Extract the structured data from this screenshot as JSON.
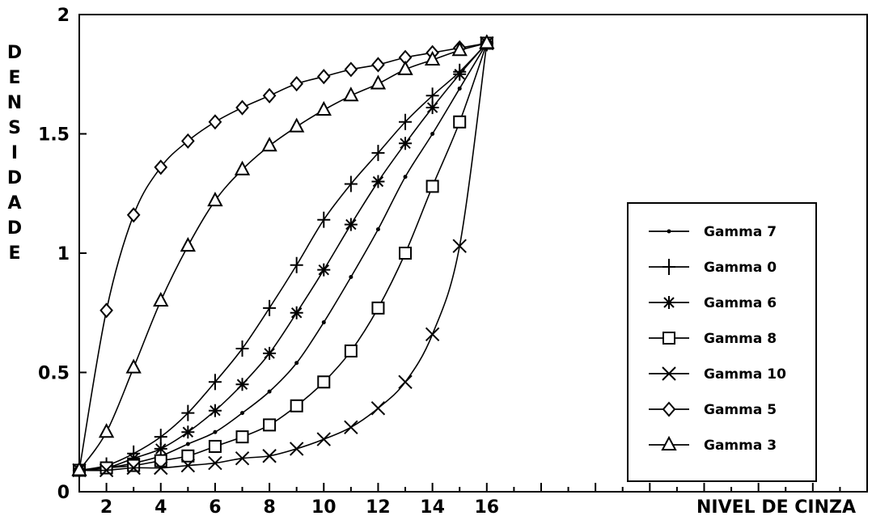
{
  "chart_data": {
    "type": "line",
    "title": "",
    "xlabel": "NIVEL DE CINZA",
    "ylabel": "DENSIDADE",
    "xlim": [
      1,
      30
    ],
    "ylim": [
      0,
      2
    ],
    "grid": false,
    "legend_position": "right",
    "x_tick_labels": [
      "2",
      "4",
      "6",
      "8",
      "10",
      "12",
      "14",
      "16"
    ],
    "y_tick_labels": [
      "0",
      "0.5",
      "1",
      "1.5",
      "2"
    ],
    "x": [
      1,
      2,
      3,
      4,
      5,
      6,
      7,
      8,
      9,
      10,
      11,
      12,
      13,
      14,
      15,
      16
    ],
    "series": [
      {
        "name": "Gamma 7",
        "marker": "dot",
        "values": [
          0.09,
          0.1,
          0.12,
          0.15,
          0.2,
          0.25,
          0.33,
          0.42,
          0.54,
          0.71,
          0.9,
          1.1,
          1.32,
          1.5,
          1.69,
          1.88
        ]
      },
      {
        "name": "Gamma 0",
        "marker": "plus",
        "values": [
          0.09,
          0.11,
          0.16,
          0.23,
          0.33,
          0.46,
          0.6,
          0.77,
          0.95,
          1.14,
          1.29,
          1.42,
          1.55,
          1.66,
          1.76,
          1.88
        ]
      },
      {
        "name": "Gamma 6",
        "marker": "star",
        "values": [
          0.09,
          0.1,
          0.14,
          0.18,
          0.25,
          0.34,
          0.45,
          0.58,
          0.75,
          0.93,
          1.12,
          1.3,
          1.46,
          1.61,
          1.75,
          1.88
        ]
      },
      {
        "name": "Gamma 8",
        "marker": "square",
        "values": [
          0.09,
          0.1,
          0.11,
          0.13,
          0.15,
          0.19,
          0.23,
          0.28,
          0.36,
          0.46,
          0.59,
          0.77,
          1.0,
          1.28,
          1.55,
          1.88
        ]
      },
      {
        "name": "Gamma 10",
        "marker": "x",
        "values": [
          0.09,
          0.09,
          0.1,
          0.1,
          0.11,
          0.12,
          0.14,
          0.15,
          0.18,
          0.22,
          0.27,
          0.35,
          0.46,
          0.66,
          1.03,
          1.88
        ]
      },
      {
        "name": "Gamma 5",
        "marker": "diamond",
        "values": [
          0.09,
          0.76,
          1.16,
          1.36,
          1.47,
          1.55,
          1.61,
          1.66,
          1.71,
          1.74,
          1.77,
          1.79,
          1.82,
          1.84,
          1.86,
          1.88
        ]
      },
      {
        "name": "Gamma 3",
        "marker": "triangle",
        "values": [
          0.09,
          0.25,
          0.52,
          0.8,
          1.03,
          1.22,
          1.35,
          1.45,
          1.53,
          1.6,
          1.66,
          1.71,
          1.77,
          1.81,
          1.85,
          1.88
        ]
      }
    ]
  }
}
